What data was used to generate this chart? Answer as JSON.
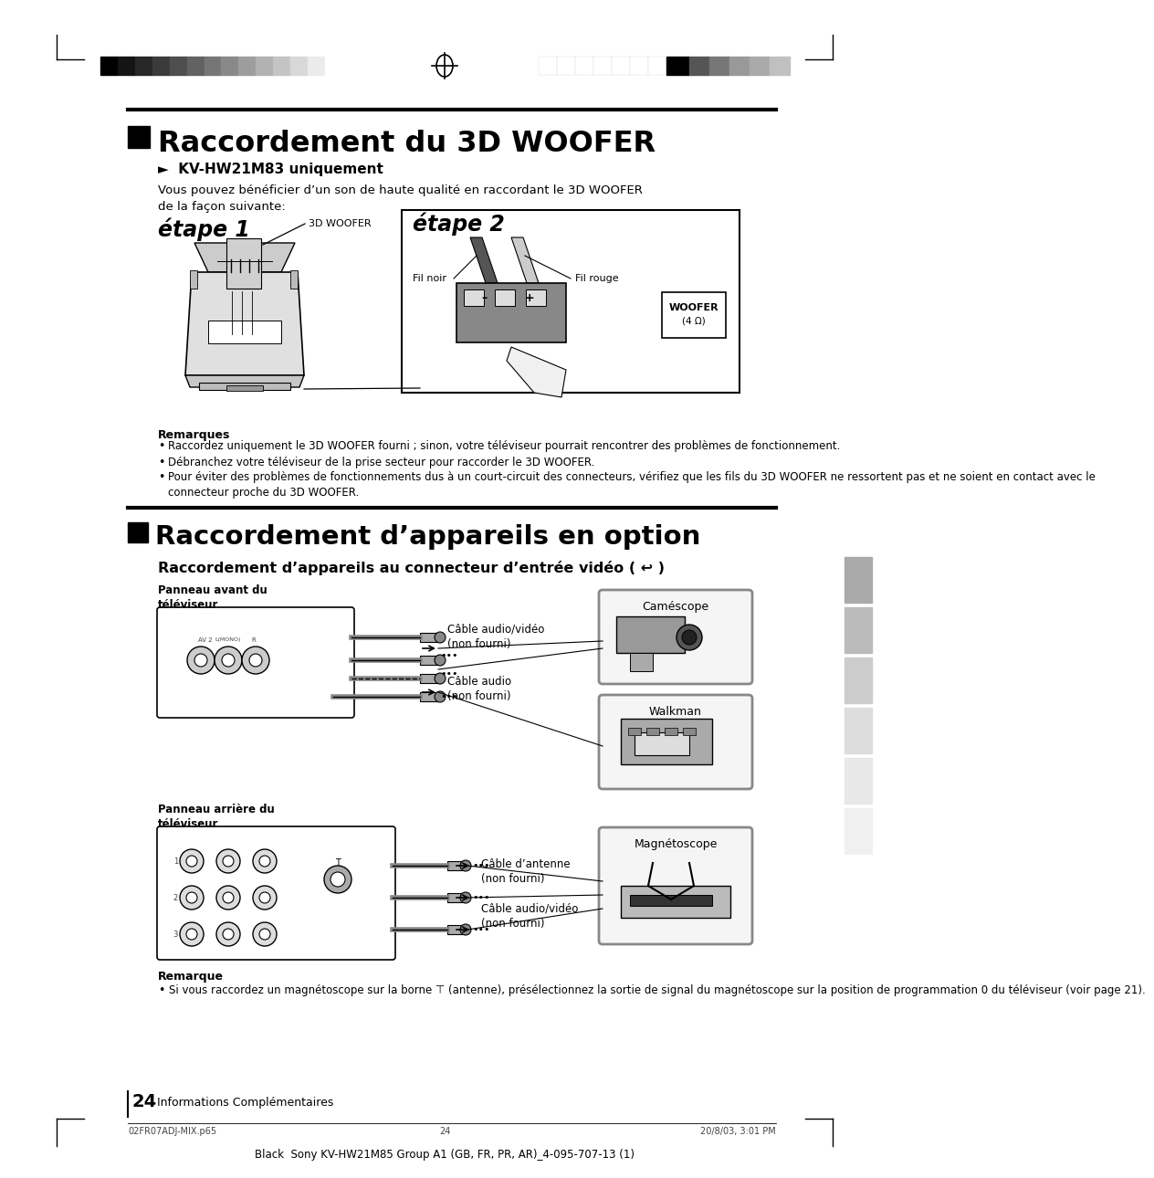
{
  "bg_color": "#ffffff",
  "section1_title": "Raccordement du 3D WOOFER",
  "section1_subtitle": "►  KV-HW21M83 uniquement",
  "section1_body": "Vous pouvez bénéficier d’un son de haute qualité en raccordant le 3D WOOFER\nde la façon suivante:",
  "etape1_label": "étape 1",
  "etape2_label": "étape 2",
  "woofer_label": "3D WOOFER",
  "fil_noir_label": "Fil noir",
  "fil_rouge_label": "Fil rouge",
  "woofer_box_label1": "WOOFER",
  "woofer_box_label2": "(4 Ω)",
  "remarques_title": "Remarques",
  "remarques_bullets": [
    "Raccordez uniquement le 3D WOOFER fourni ; sinon, votre téléviseur pourrait rencontrer des problèmes de fonctionnement.",
    "Débranchez votre téléviseur de la prise secteur pour raccorder le 3D WOOFER.",
    "Pour éviter des problèmes de fonctionnements dus à un court-circuit des connecteurs, vérifiez que les fils du 3D WOOFER ne ressortent pas et ne soient en contact avec le connecteur proche du 3D WOOFER."
  ],
  "section2_title": "Raccordement d’appareils en option",
  "section2_subtitle": "Raccordement d’appareils au connecteur d’entrée vidéo ( ↩ )",
  "panneau_avant": "Panneau avant du\ntéléviseur",
  "panneau_arriere": "Panneau arrière du\ntéléviseur",
  "cable_av_label1": "Câble audio/vidéo\n(non fourni)",
  "cable_au_label": "Câble audio\n(non fourni)",
  "cable_ant_label": "Câble d’antenne\n(non fourni)",
  "cable_av_label2": "Câble audio/vidéo\n(non fourni)",
  "camescope_label": "Caméscope",
  "walkman_label": "Walkman",
  "magnetoscope_label": "Magnétoscope",
  "remarque2_title": "Remarque",
  "remarque2_bullet": "Si vous raccordez un magnétoscope sur la borne ⊤ (antenne), présélectionnez la sortie de signal du magnétoscope sur la position de programmation 0 du téléviseur (voir page 21).",
  "page_number": "24",
  "page_footer_left": "Informations Complémentaires",
  "footer_file": "02FR07ADJ-MIX.p65",
  "footer_center": "24",
  "footer_date": "20/8/03, 3:01 PM",
  "footer_bottom": "Black  Sony KV-HW21M85 Group A1 (GB, FR, PR, AR)_4-095-707-13 (1)"
}
